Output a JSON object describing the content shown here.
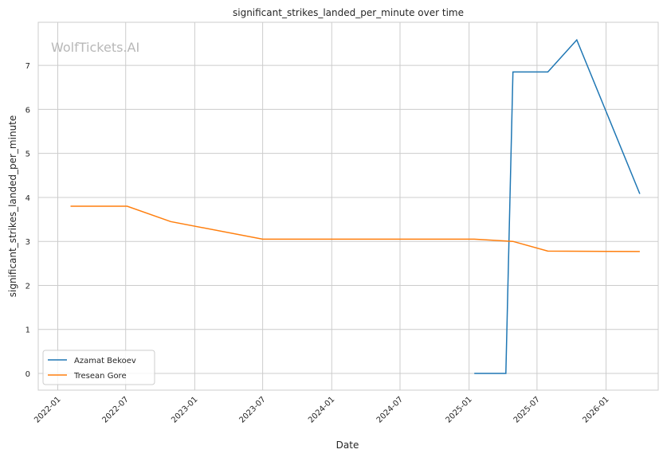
{
  "chart_data": {
    "type": "line",
    "title": "significant_strikes_landed_per_minute over time",
    "xlabel": "Date",
    "ylabel": "significant_strikes_landed_per_minute",
    "watermark": "WolfTickets.AI",
    "x_ticks": [
      "2022-01",
      "2022-07",
      "2023-01",
      "2023-07",
      "2024-01",
      "2024-07",
      "2025-01",
      "2025-07",
      "2026-01"
    ],
    "y_ticks": [
      0,
      1,
      2,
      3,
      4,
      5,
      6,
      7
    ],
    "ylim": [
      -0.38,
      7.98
    ],
    "xlim": [
      "2021-11-10",
      "2026-05-20"
    ],
    "grid": true,
    "legend_placement": "lower-left",
    "series": [
      {
        "name": "Azamat Bekoev",
        "color": "#1f77b4",
        "x": [
          "2025-01-15",
          "2025-04-09",
          "2025-04-28",
          "2025-07-30",
          "2025-10-15",
          "2026-04-01"
        ],
        "values": [
          0,
          0,
          6.85,
          6.85,
          7.58,
          4.08
        ]
      },
      {
        "name": "Tresean Gore",
        "color": "#ff7f0e",
        "x": [
          "2022-02-04",
          "2022-07-05",
          "2022-10-29",
          "2023-07-01",
          "2025-01-15",
          "2025-04-28",
          "2025-07-30",
          "2026-04-01"
        ],
        "values": [
          3.8,
          3.8,
          3.45,
          3.05,
          3.05,
          3.0,
          2.78,
          2.77
        ]
      }
    ]
  }
}
